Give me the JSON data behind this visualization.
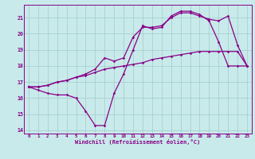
{
  "xlabel": "Windchill (Refroidissement éolien,°C)",
  "background_color": "#c8eaea",
  "grid_color": "#a8d0d0",
  "line_color": "#880088",
  "xlim": [
    -0.5,
    23.5
  ],
  "ylim": [
    13.8,
    21.8
  ],
  "xticks": [
    0,
    1,
    2,
    3,
    4,
    5,
    6,
    7,
    8,
    9,
    10,
    11,
    12,
    13,
    14,
    15,
    16,
    17,
    18,
    19,
    20,
    21,
    22,
    23
  ],
  "yticks": [
    14,
    15,
    16,
    17,
    18,
    19,
    20,
    21
  ],
  "line1_x": [
    0,
    1,
    2,
    3,
    4,
    5,
    6,
    7,
    8,
    9,
    10,
    11,
    12,
    13,
    14,
    15,
    16,
    17,
    18,
    19,
    20,
    21,
    22,
    23
  ],
  "line1_y": [
    16.7,
    16.5,
    16.3,
    16.2,
    16.2,
    16.0,
    15.2,
    14.3,
    14.3,
    16.3,
    17.5,
    19.0,
    20.5,
    20.3,
    20.4,
    21.1,
    21.4,
    21.4,
    21.2,
    20.8,
    19.5,
    18.0,
    18.0,
    18.0
  ],
  "line2_x": [
    0,
    1,
    2,
    3,
    4,
    5,
    6,
    7,
    8,
    9,
    10,
    11,
    12,
    13,
    14,
    15,
    16,
    17,
    18,
    19,
    20,
    21,
    22,
    23
  ],
  "line2_y": [
    16.7,
    16.7,
    16.8,
    17.0,
    17.1,
    17.3,
    17.4,
    17.6,
    17.8,
    17.9,
    18.0,
    18.1,
    18.2,
    18.4,
    18.5,
    18.6,
    18.7,
    18.8,
    18.9,
    18.9,
    18.9,
    18.9,
    18.9,
    18.0
  ],
  "line3_x": [
    0,
    1,
    2,
    3,
    4,
    5,
    6,
    7,
    8,
    9,
    10,
    11,
    12,
    13,
    14,
    15,
    16,
    17,
    18,
    19,
    20,
    21,
    22,
    23
  ],
  "line3_y": [
    16.7,
    16.7,
    16.8,
    17.0,
    17.1,
    17.3,
    17.5,
    17.8,
    18.5,
    18.3,
    18.5,
    19.8,
    20.4,
    20.4,
    20.5,
    21.0,
    21.3,
    21.3,
    21.1,
    20.9,
    20.8,
    21.1,
    19.3,
    18.0
  ]
}
